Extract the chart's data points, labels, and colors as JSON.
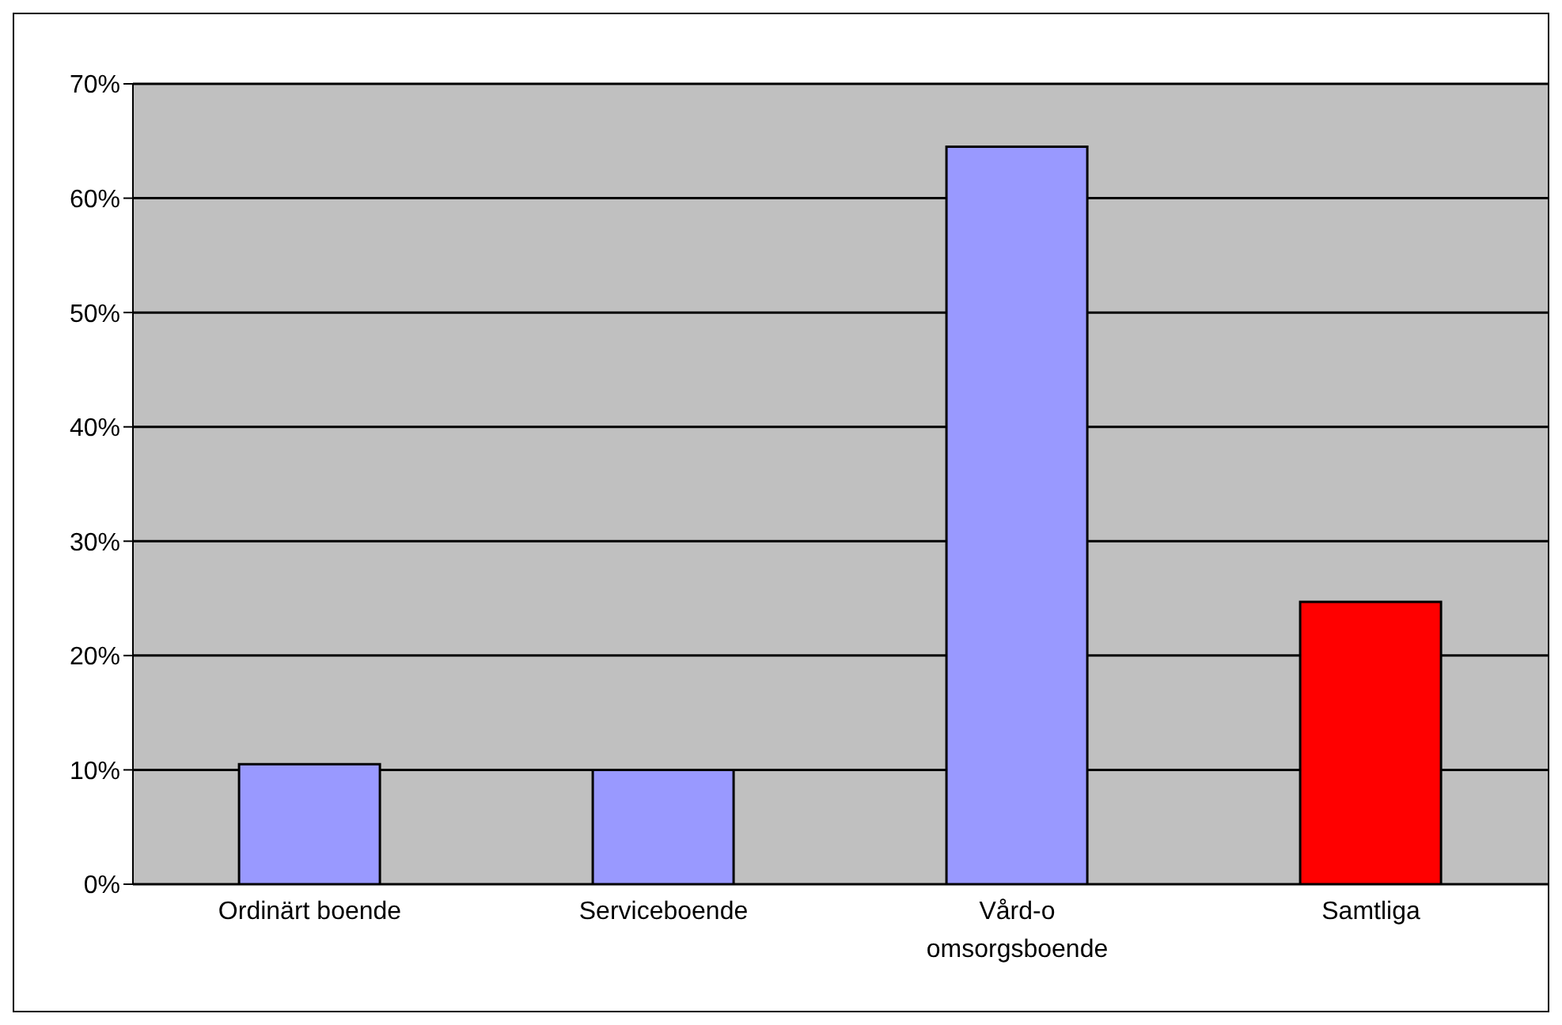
{
  "chart_data": {
    "type": "bar",
    "categories": [
      "Ordinärt boende",
      "Serviceboende",
      "Vård-o omsorgsboende",
      "Samtliga"
    ],
    "values": [
      10.5,
      10,
      64.5,
      24.7
    ],
    "colors": [
      "#9999ff",
      "#9999ff",
      "#9999ff",
      "#ff0000"
    ],
    "ylim": [
      0,
      70
    ],
    "yticks": [
      {
        "value": 0,
        "label": "0%"
      },
      {
        "value": 10,
        "label": "10%"
      },
      {
        "value": 20,
        "label": "20%"
      },
      {
        "value": 30,
        "label": "30%"
      },
      {
        "value": 40,
        "label": "40%"
      },
      {
        "value": 50,
        "label": "50%"
      },
      {
        "value": 60,
        "label": "60%"
      },
      {
        "value": 70,
        "label": "70%"
      }
    ],
    "grid": "y"
  }
}
